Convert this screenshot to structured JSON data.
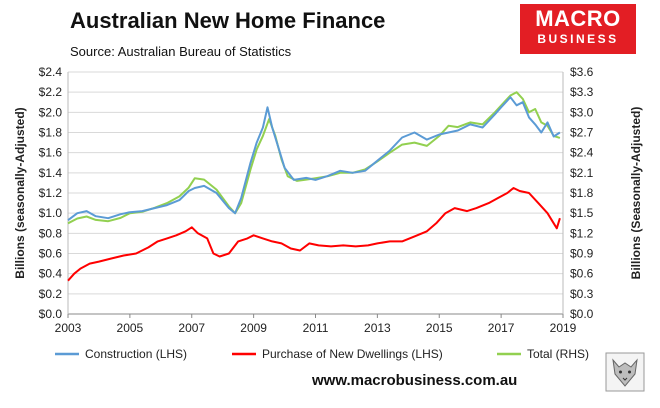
{
  "header": {
    "title": "Australian New Home Finance",
    "subtitle": "Source: Australian Bureau of Statistics",
    "logo_line1": "MACRO",
    "logo_line2": "BUSINESS",
    "logo_color": "#e31e24"
  },
  "footer": {
    "website": "www.macrobusiness.com.au",
    "logo_icon": "wolf-icon"
  },
  "chart_data": {
    "type": "line",
    "title": "Australian New Home Finance",
    "ylabel_left": "Billions (seasonally-Adjusted)",
    "ylabel_right": "Billions (Seasonally-Adjusted)",
    "xlim": [
      2003,
      2019
    ],
    "ylim_left": [
      0,
      2.4
    ],
    "ylim_right": [
      0,
      3.6
    ],
    "x_ticks": [
      2003,
      2005,
      2007,
      2009,
      2011,
      2013,
      2015,
      2017,
      2019
    ],
    "y_ticks_left": [
      "$0.0",
      "$0.2",
      "$0.4",
      "$0.6",
      "$0.8",
      "$1.0",
      "$1.2",
      "$1.4",
      "$1.6",
      "$1.8",
      "$2.0",
      "$2.2",
      "$2.4"
    ],
    "y_ticks_right": [
      "$0.0",
      "$0.3",
      "$0.6",
      "$0.9",
      "$1.2",
      "$1.5",
      "$1.8",
      "$2.1",
      "$2.4",
      "$2.7",
      "$3.0",
      "$3.3",
      "$3.6"
    ],
    "grid": true,
    "legend_position": "bottom",
    "series": [
      {
        "name": "Construction (LHS)",
        "axis": "left",
        "color": "#5b9bd5",
        "points": [
          [
            2003.0,
            0.93
          ],
          [
            2003.3,
            1.0
          ],
          [
            2003.6,
            1.02
          ],
          [
            2003.9,
            0.97
          ],
          [
            2004.3,
            0.95
          ],
          [
            2004.7,
            0.99
          ],
          [
            2005.0,
            1.01
          ],
          [
            2005.4,
            1.02
          ],
          [
            2005.8,
            1.05
          ],
          [
            2006.2,
            1.08
          ],
          [
            2006.6,
            1.13
          ],
          [
            2006.9,
            1.22
          ],
          [
            2007.1,
            1.25
          ],
          [
            2007.4,
            1.27
          ],
          [
            2007.8,
            1.2
          ],
          [
            2008.2,
            1.05
          ],
          [
            2008.4,
            1.0
          ],
          [
            2008.6,
            1.15
          ],
          [
            2008.9,
            1.5
          ],
          [
            2009.1,
            1.7
          ],
          [
            2009.3,
            1.85
          ],
          [
            2009.45,
            2.05
          ],
          [
            2009.6,
            1.85
          ],
          [
            2009.8,
            1.65
          ],
          [
            2010.0,
            1.45
          ],
          [
            2010.3,
            1.33
          ],
          [
            2010.7,
            1.35
          ],
          [
            2011.0,
            1.33
          ],
          [
            2011.4,
            1.37
          ],
          [
            2011.8,
            1.42
          ],
          [
            2012.2,
            1.4
          ],
          [
            2012.6,
            1.42
          ],
          [
            2013.0,
            1.52
          ],
          [
            2013.4,
            1.62
          ],
          [
            2013.8,
            1.75
          ],
          [
            2014.2,
            1.8
          ],
          [
            2014.6,
            1.73
          ],
          [
            2015.0,
            1.78
          ],
          [
            2015.3,
            1.8
          ],
          [
            2015.6,
            1.82
          ],
          [
            2016.0,
            1.88
          ],
          [
            2016.4,
            1.85
          ],
          [
            2016.8,
            1.98
          ],
          [
            2017.0,
            2.05
          ],
          [
            2017.3,
            2.15
          ],
          [
            2017.5,
            2.07
          ],
          [
            2017.7,
            2.1
          ],
          [
            2017.9,
            1.95
          ],
          [
            2018.1,
            1.88
          ],
          [
            2018.3,
            1.8
          ],
          [
            2018.5,
            1.9
          ],
          [
            2018.7,
            1.76
          ],
          [
            2018.9,
            1.8
          ]
        ]
      },
      {
        "name": "Purchase of New Dwellings (LHS)",
        "axis": "left",
        "color": "#ff0000",
        "points": [
          [
            2003.0,
            0.33
          ],
          [
            2003.2,
            0.4
          ],
          [
            2003.4,
            0.45
          ],
          [
            2003.7,
            0.5
          ],
          [
            2004.0,
            0.52
          ],
          [
            2004.4,
            0.55
          ],
          [
            2004.8,
            0.58
          ],
          [
            2005.2,
            0.6
          ],
          [
            2005.6,
            0.66
          ],
          [
            2005.9,
            0.72
          ],
          [
            2006.2,
            0.75
          ],
          [
            2006.5,
            0.78
          ],
          [
            2006.8,
            0.82
          ],
          [
            2007.0,
            0.86
          ],
          [
            2007.2,
            0.8
          ],
          [
            2007.5,
            0.75
          ],
          [
            2007.7,
            0.6
          ],
          [
            2007.9,
            0.57
          ],
          [
            2008.2,
            0.6
          ],
          [
            2008.5,
            0.72
          ],
          [
            2008.8,
            0.75
          ],
          [
            2009.0,
            0.78
          ],
          [
            2009.3,
            0.75
          ],
          [
            2009.6,
            0.72
          ],
          [
            2009.9,
            0.7
          ],
          [
            2010.2,
            0.65
          ],
          [
            2010.5,
            0.63
          ],
          [
            2010.8,
            0.7
          ],
          [
            2011.1,
            0.68
          ],
          [
            2011.5,
            0.67
          ],
          [
            2011.9,
            0.68
          ],
          [
            2012.3,
            0.67
          ],
          [
            2012.7,
            0.68
          ],
          [
            2013.0,
            0.7
          ],
          [
            2013.4,
            0.72
          ],
          [
            2013.8,
            0.72
          ],
          [
            2014.2,
            0.77
          ],
          [
            2014.6,
            0.82
          ],
          [
            2014.9,
            0.9
          ],
          [
            2015.2,
            1.0
          ],
          [
            2015.5,
            1.05
          ],
          [
            2015.9,
            1.02
          ],
          [
            2016.2,
            1.05
          ],
          [
            2016.6,
            1.1
          ],
          [
            2016.9,
            1.15
          ],
          [
            2017.2,
            1.2
          ],
          [
            2017.4,
            1.25
          ],
          [
            2017.6,
            1.22
          ],
          [
            2017.9,
            1.2
          ],
          [
            2018.2,
            1.1
          ],
          [
            2018.5,
            1.0
          ],
          [
            2018.7,
            0.9
          ],
          [
            2018.8,
            0.85
          ],
          [
            2018.9,
            0.95
          ]
        ]
      },
      {
        "name": "Total (RHS)",
        "axis": "right",
        "color": "#92d050",
        "points": [
          [
            2003.0,
            1.35
          ],
          [
            2003.3,
            1.42
          ],
          [
            2003.6,
            1.45
          ],
          [
            2003.9,
            1.4
          ],
          [
            2004.3,
            1.38
          ],
          [
            2004.7,
            1.43
          ],
          [
            2005.0,
            1.5
          ],
          [
            2005.4,
            1.52
          ],
          [
            2005.8,
            1.58
          ],
          [
            2006.2,
            1.65
          ],
          [
            2006.6,
            1.75
          ],
          [
            2006.9,
            1.88
          ],
          [
            2007.1,
            2.02
          ],
          [
            2007.4,
            2.0
          ],
          [
            2007.8,
            1.85
          ],
          [
            2008.2,
            1.6
          ],
          [
            2008.4,
            1.5
          ],
          [
            2008.6,
            1.65
          ],
          [
            2008.9,
            2.15
          ],
          [
            2009.1,
            2.45
          ],
          [
            2009.3,
            2.65
          ],
          [
            2009.5,
            2.9
          ],
          [
            2009.7,
            2.65
          ],
          [
            2009.9,
            2.3
          ],
          [
            2010.1,
            2.05
          ],
          [
            2010.4,
            1.98
          ],
          [
            2010.7,
            2.0
          ],
          [
            2011.0,
            2.02
          ],
          [
            2011.4,
            2.05
          ],
          [
            2011.8,
            2.1
          ],
          [
            2012.2,
            2.1
          ],
          [
            2012.6,
            2.15
          ],
          [
            2013.0,
            2.27
          ],
          [
            2013.4,
            2.4
          ],
          [
            2013.8,
            2.52
          ],
          [
            2014.2,
            2.55
          ],
          [
            2014.6,
            2.5
          ],
          [
            2015.0,
            2.65
          ],
          [
            2015.3,
            2.8
          ],
          [
            2015.6,
            2.78
          ],
          [
            2016.0,
            2.85
          ],
          [
            2016.4,
            2.82
          ],
          [
            2016.8,
            3.0
          ],
          [
            2017.0,
            3.1
          ],
          [
            2017.3,
            3.25
          ],
          [
            2017.5,
            3.3
          ],
          [
            2017.7,
            3.2
          ],
          [
            2017.9,
            3.0
          ],
          [
            2018.1,
            3.05
          ],
          [
            2018.3,
            2.85
          ],
          [
            2018.5,
            2.8
          ],
          [
            2018.7,
            2.65
          ],
          [
            2018.9,
            2.62
          ]
        ]
      }
    ]
  }
}
